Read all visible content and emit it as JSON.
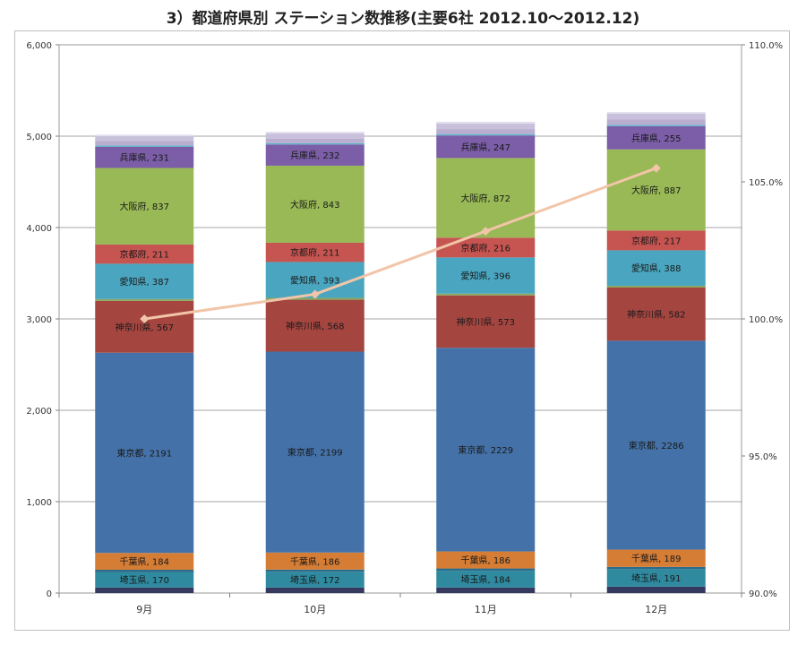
{
  "chart_data": {
    "type": "bar",
    "stacked": true,
    "title": "3）都道府県別 ステーション数推移(主要6社 2012.10～2012.12)",
    "categories": [
      "9月",
      "10月",
      "11月",
      "12月"
    ],
    "ylim": [
      0,
      6000
    ],
    "yticks": [
      "0",
      "1,000",
      "2,000",
      "3,000",
      "4,000",
      "5,000",
      "6,000"
    ],
    "y2lim": [
      90.0,
      110.0
    ],
    "y2ticks": [
      "90.0%",
      "95.0%",
      "100.0%",
      "105.0%",
      "110.0%"
    ],
    "grid": true,
    "series": [
      {
        "name": "",
        "color": "#35395f",
        "values": [
          60,
          60,
          60,
          70
        ],
        "show_label": false
      },
      {
        "name": "埼玉県",
        "color": "#2f8aa0",
        "values": [
          170,
          172,
          184,
          191
        ],
        "show_label": true
      },
      {
        "name": "",
        "color": "#2d6c8a",
        "values": [
          25,
          25,
          25,
          25
        ],
        "show_label": false
      },
      {
        "name": "千葉県",
        "color": "#d67d35",
        "values": [
          184,
          186,
          186,
          189
        ],
        "show_label": true
      },
      {
        "name": "東京都",
        "color": "#4472a8",
        "values": [
          2191,
          2199,
          2229,
          2286
        ],
        "show_label": true
      },
      {
        "name": "神奈川県",
        "color": "#a44540",
        "values": [
          567,
          568,
          573,
          582
        ],
        "show_label": true
      },
      {
        "name": "",
        "color": "#8aa660",
        "values": [
          20,
          20,
          20,
          20
        ],
        "show_label": false
      },
      {
        "name": "愛知県",
        "color": "#4aa6c0",
        "values": [
          387,
          393,
          396,
          388
        ],
        "show_label": true
      },
      {
        "name": "京都府",
        "color": "#c65450",
        "values": [
          211,
          211,
          216,
          217
        ],
        "show_label": true
      },
      {
        "name": "大阪府",
        "color": "#98b955",
        "values": [
          837,
          843,
          872,
          887
        ],
        "show_label": true
      },
      {
        "name": "兵庫県",
        "color": "#7b5ea7",
        "values": [
          231,
          232,
          247,
          255
        ],
        "show_label": true
      },
      {
        "name": "",
        "color": "#5fb2c8",
        "values": [
          15,
          15,
          15,
          15
        ],
        "show_label": false
      },
      {
        "name": "",
        "color": "#b9aed0",
        "values": [
          50,
          50,
          55,
          60
        ],
        "show_label": false
      },
      {
        "name": "",
        "color": "#c9c1dc",
        "values": [
          50,
          55,
          60,
          60
        ],
        "show_label": false
      },
      {
        "name": "",
        "color": "#e3dfef",
        "values": [
          20,
          20,
          20,
          20
        ],
        "show_label": false
      }
    ],
    "line": {
      "name": "",
      "color": "#f2c5a8",
      "axis": "secondary",
      "values": [
        100.0,
        100.9,
        103.2,
        105.5
      ]
    }
  }
}
